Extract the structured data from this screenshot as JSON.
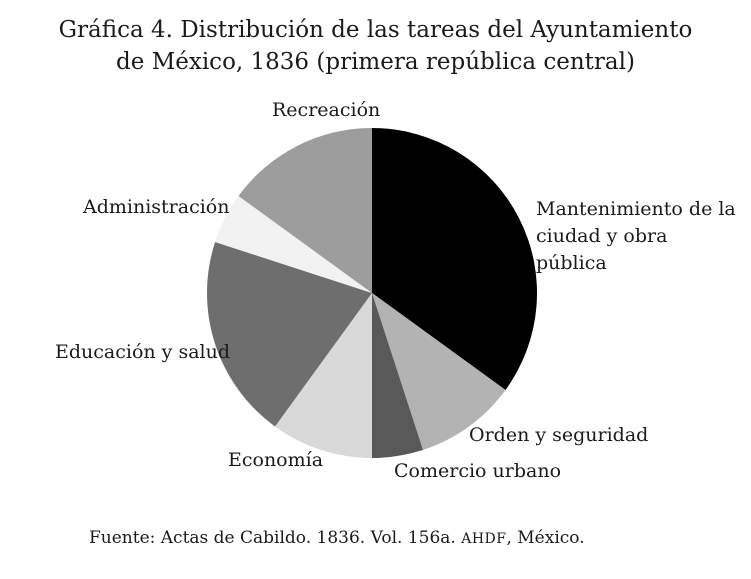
{
  "figure": {
    "background": "#ffffff",
    "text_color": "#1a1a1a"
  },
  "chart_data": {
    "type": "pie",
    "title": "Gráfica 4. Distribución de las tareas del Ayuntamiento de México, 1836 (primera república central)",
    "title_lines": [
      "Gráfica 4. Distribución de las tareas del Ayuntamiento",
      "de México, 1836 (primera república central)"
    ],
    "unit": "%",
    "start_angle_deg": 0,
    "direction": "clockwise",
    "legend_position": "labels-around-pie",
    "segments": [
      {
        "label": "Mantenimiento de la ciudad y obra pública",
        "value": 35,
        "color": "#000000"
      },
      {
        "label": "Orden y seguridad",
        "value": 10,
        "color": "#b3b3b3"
      },
      {
        "label": "Comercio urbano",
        "value": 5,
        "color": "#595959"
      },
      {
        "label": "Economía",
        "value": 10,
        "color": "#d9d9d9"
      },
      {
        "label": "Educación y salud",
        "value": 20,
        "color": "#6e6e6e"
      },
      {
        "label": "Administración",
        "value": 5,
        "color": "#f2f2f2"
      },
      {
        "label": "Recreación",
        "value": 15,
        "color": "#9d9d9d"
      }
    ],
    "source_prefix": "Fuente: Actas de Cabildo. 1836. Vol. 156a. ",
    "source_smallcaps": "AHDF",
    "source_suffix": ", México."
  }
}
